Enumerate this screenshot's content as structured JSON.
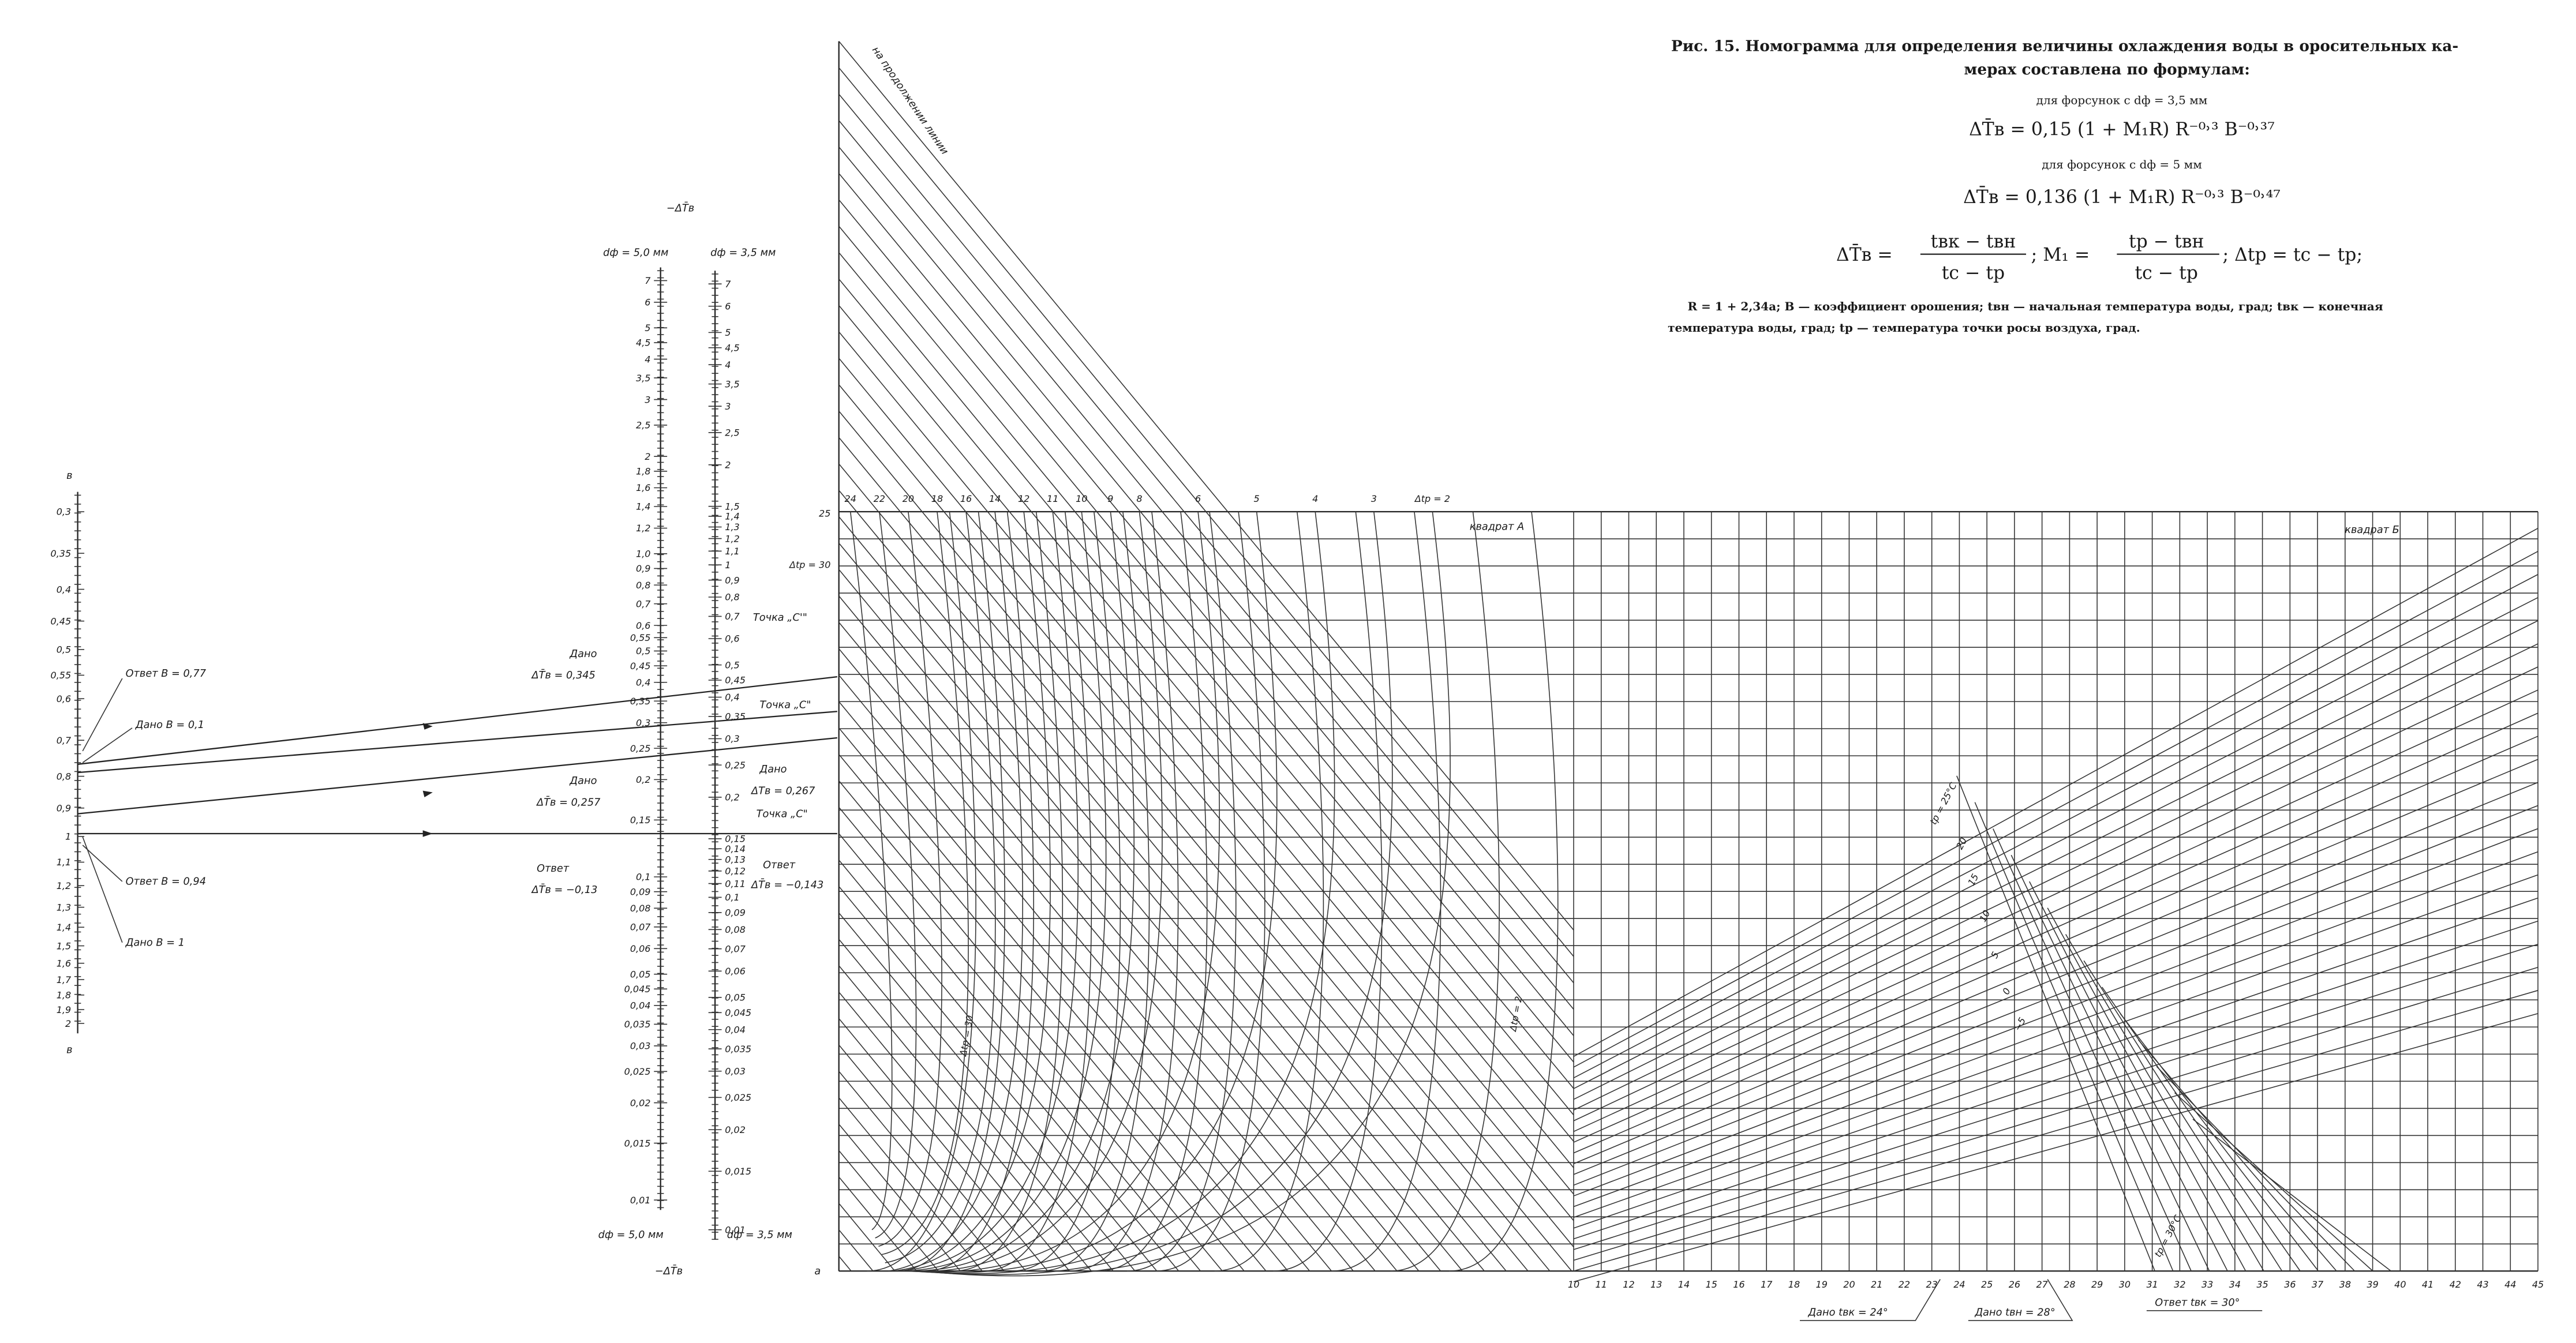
{
  "caption": {
    "line1": "Рис. 15. Номограмма для определения величины охлаждения воды в оросительных ка-",
    "line2": "мерах составлена по формулам:",
    "nozzle1": "для форсунок с dф = 3,5 мм",
    "formula1": "ΔT̄в = 0,15 (1 + M₁R) R⁻⁰˒³ B⁻⁰˒³⁷",
    "nozzle2": "для форсунок с dф = 5 мм",
    "formula2": "ΔT̄в = 0,136 (1 + M₁R) R⁻⁰˒³ B⁻⁰˒⁴⁷",
    "formula3": [
      "ΔT̄в =",
      "tвк − tвн",
      "tс − tр",
      ";  M₁ =",
      "tр − tвн",
      "tс − tр",
      ";  Δtр = tс − tр;"
    ],
    "def1": "R = 1 + 2,34a; B — коэффициент орошения; tвн — начальная температура воды, град;  tвк — конечная",
    "def2": "температура воды, град; tр — температура точки росы воздуха, град."
  },
  "b_scale": {
    "name": "в",
    "labels": [
      "0,3",
      "0,35",
      "0,4",
      "0,45",
      "0,5",
      "0,55",
      "0,6",
      "0,7",
      "0,8",
      "0,9",
      "1",
      "1,1",
      "1,2",
      "1,3",
      "1,4",
      "1,5",
      "1,6",
      "1,7",
      "1,8",
      "1,9",
      "2"
    ]
  },
  "dt_scale_5": {
    "labels": [
      "7",
      "6",
      "5",
      "4,5",
      "4",
      "3,5",
      "3",
      "2,5",
      "2",
      "1,8",
      "1,6",
      "1,4",
      "1,2",
      "1,0",
      "0,9",
      "0,8",
      "0,7",
      "0,6",
      "0,55",
      "0,5",
      "0,45",
      "0,4",
      "0,35",
      "0,3",
      "0,25",
      "0,2",
      "0,15",
      "0,1",
      "0,09",
      "0,08",
      "0,07",
      "0,06",
      "0,05",
      "0,045",
      "0,04",
      "0,035",
      "0,03",
      "0,025",
      "0,02",
      "0,015",
      "0,01"
    ]
  },
  "dt_scale_35": {
    "labels": [
      "7",
      "6",
      "5",
      "4,5",
      "4",
      "3,5",
      "3",
      "2,5",
      "2",
      "1,5",
      "1,4",
      "1,3",
      "1,2",
      "1,1",
      "1",
      "0,9",
      "0,8",
      "0,7",
      "0,6",
      "0,5",
      "0,45",
      "0,4",
      "0,35",
      "0,3",
      "0,25",
      "0,2",
      "0,15",
      "0,14",
      "0,13",
      "0,12",
      "0,11",
      "0,1",
      "0,09",
      "0,08",
      "0,07",
      "0,06",
      "0,05",
      "0,045",
      "0,04",
      "0,035",
      "0,03",
      "0,025",
      "0,02",
      "0,015",
      "0,01"
    ]
  },
  "scale_titles": {
    "top": "−ΔT̄в",
    "bottom": "−ΔT̄в",
    "d5": "dф = 5,0 мм",
    "d35": "dф = 3,5 мм"
  },
  "annotations": {
    "b_answer_1": "Ответ B = 0,77",
    "b_given_1": "Дано B = 0,1",
    "b_answer_2": "Ответ B = 0,94",
    "b_given_2": "Дано B = 1",
    "given": "Дано",
    "answer": "Ответ",
    "dt_given_1": "ΔT̄в = 0,345",
    "dt_given_2": "ΔT̄в = 0,257",
    "dt_answer_1": "ΔT̄в = −0,13",
    "dt_given_3": "ΔTв = 0,267",
    "dt_answer_2": "ΔT̄в = −0,143",
    "point_c1": "Точка „С'\"",
    "point_c2": "Точка „С\"",
    "point_c3": "Точка „С\"",
    "continuation": "на продолжении линии",
    "quad_a": "квадрат А",
    "quad_b": "квадрат Б",
    "left_top": "25",
    "dtr30": "Δtр = 30",
    "corner": "a",
    "bottom_given_1": "Дано tвк = 24°",
    "bottom_given_2": "Дано tвн = 28°",
    "bottom_answer": "Ответ tвк = 30°",
    "tr25": "tр = 25°С",
    "tr30": "tр = 30°С",
    "dtr30b": "Δtр = 30",
    "dtr2b": "Δtр = 2"
  },
  "curve_labels": [
    "24",
    "22",
    "20",
    "18",
    "16",
    "14",
    "12",
    "11",
    "10",
    "9",
    "8",
    "6",
    "5",
    "4",
    "3",
    "Δtр = 2"
  ],
  "tr_labels": [
    "20",
    "15",
    "10",
    "5",
    "0",
    "−5"
  ],
  "x_axis": {
    "labels": [
      "10",
      "11",
      "12",
      "13",
      "14",
      "15",
      "16",
      "17",
      "18",
      "19",
      "20",
      "21",
      "22",
      "23",
      "24",
      "25",
      "26",
      "27",
      "28",
      "29",
      "30",
      "31",
      "32",
      "33",
      "34",
      "35",
      "36",
      "37",
      "38",
      "39",
      "40",
      "41",
      "42",
      "43",
      "44",
      "45"
    ]
  }
}
